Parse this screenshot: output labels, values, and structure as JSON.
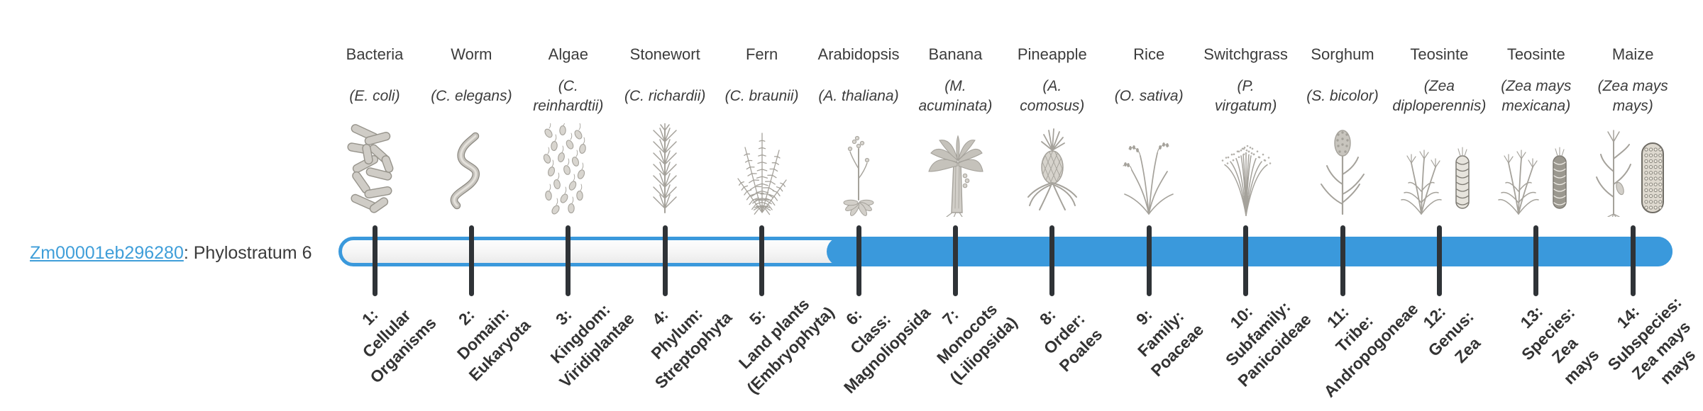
{
  "gene": {
    "id": "Zm00001eb296280",
    "suffix": ": Phylostratum 6",
    "phylostratum": 6
  },
  "timeline": {
    "total_strata": 14,
    "filled_from_stratum": 6,
    "accent_color": "#3a99dc",
    "track_interior_color": "#f5f5f5",
    "tick_color": "#2f3337",
    "link_color": "#3f9ed9"
  },
  "organisms": [
    {
      "name": "Bacteria",
      "sci": "(E. coli)",
      "stratum": "1:\nCellular\nOrganisms",
      "icon": "bacteria"
    },
    {
      "name": "Worm",
      "sci": "(C. elegans)",
      "stratum": "2:\nDomain:\nEukaryota",
      "icon": "worm"
    },
    {
      "name": "Algae",
      "sci": "(C.\nreinhardtii)",
      "stratum": "3:\nKingdom:\nViridiplantae",
      "icon": "algae"
    },
    {
      "name": "Stonewort",
      "sci": "(C. richardii)",
      "stratum": "4:\nPhylum:\nStreptophyta",
      "icon": "stonewort"
    },
    {
      "name": "Fern",
      "sci": "(C. braunii)",
      "stratum": "5:\nLand plants\n(Embryophyta)",
      "icon": "fern"
    },
    {
      "name": "Arabidopsis",
      "sci": "(A. thaliana)",
      "stratum": "6:\nClass:\nMagnoliopsida",
      "icon": "arabidopsis"
    },
    {
      "name": "Banana",
      "sci": "(M.\nacuminata)",
      "stratum": "7:\nMonocots\n(Liliopsida)",
      "icon": "banana"
    },
    {
      "name": "Pineapple",
      "sci": "(A.\ncomosus)",
      "stratum": "8:\nOrder:\nPoales",
      "icon": "pineapple"
    },
    {
      "name": "Rice",
      "sci": "(O. sativa)",
      "stratum": "9:\nFamily:\nPoaceae",
      "icon": "rice"
    },
    {
      "name": "Switchgrass",
      "sci": "(P.\nvirgatum)",
      "stratum": "10:\nSubfamily:\nPanicoideae",
      "icon": "switchgrass"
    },
    {
      "name": "Sorghum",
      "sci": "(S. bicolor)",
      "stratum": "11:\nTribe:\nAndropogoneae",
      "icon": "sorghum"
    },
    {
      "name": "Teosinte",
      "sci": "(Zea\ndiploperennis)",
      "stratum": "12:\nGenus:\nZea",
      "icon": "teosinte-light"
    },
    {
      "name": "Teosinte",
      "sci": "(Zea mays\nmexicana)",
      "stratum": "13:\nSpecies:\nZea\nmays",
      "icon": "teosinte-dark"
    },
    {
      "name": "Maize",
      "sci": "(Zea mays\nmays)",
      "stratum": "14:\nSubspecies:\nZea mays\nmays",
      "icon": "maize"
    }
  ]
}
